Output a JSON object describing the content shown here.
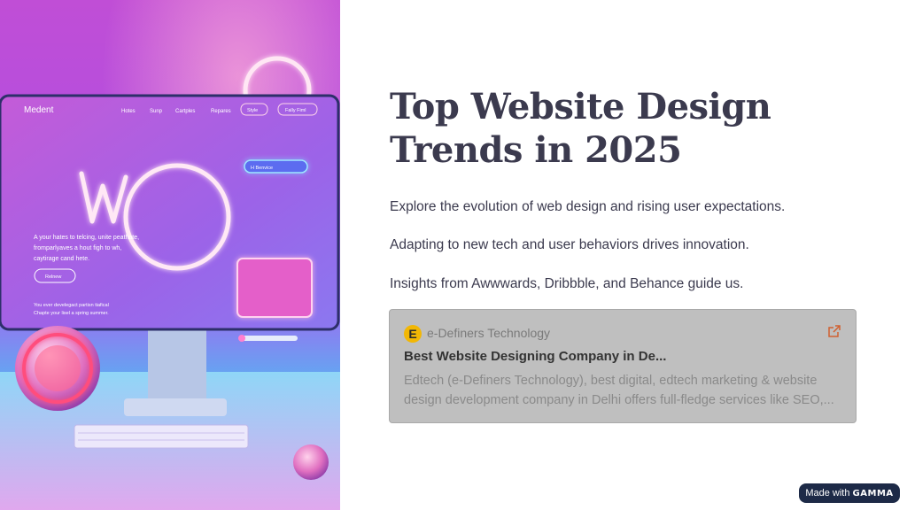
{
  "slide": {
    "title": "Top Website Design Trends in 2025",
    "paragraphs": [
      "Explore the evolution of web design and rising user expectations.",
      "Adapting to new tech and user behaviors drives innovation.",
      "Insights from Awwwards, Dribbble, and Behance guide us."
    ]
  },
  "illustration": {
    "brand": "Medent",
    "nav": [
      "Hotes",
      "Sunp",
      "Cartples",
      "Repares"
    ],
    "nav_button_1": "Style",
    "nav_button_2": "Fally Fiml",
    "search_text": "H Benvice",
    "hero_text_lines": [
      "A your hates to telcing, unite peathate,",
      "fromparlyaves a hout figh to wh,",
      "caytirage cand hete."
    ],
    "hero_button": "Relnew",
    "footer_lines": [
      "You ever develegact partisn tiafical",
      "Chapte your lisel a spring summer."
    ]
  },
  "link_card": {
    "favicon_letter": "E",
    "site_name": "e-Definers Technology",
    "title": "Best Website Designing Company in De...",
    "description": "Edtech (e-Definers Technology), best digital, edtech marketing & website design development company in Delhi offers full-fledge services like SEO,..."
  },
  "badge": {
    "prefix": "Made with",
    "brand": "GAMMA"
  },
  "colors": {
    "title": "#3b3a4e",
    "card_bg": "#bfbfbf",
    "badge_bg": "#1d2a47",
    "neon_pink": "#ff5fa8",
    "favicon": "#f2b705"
  }
}
